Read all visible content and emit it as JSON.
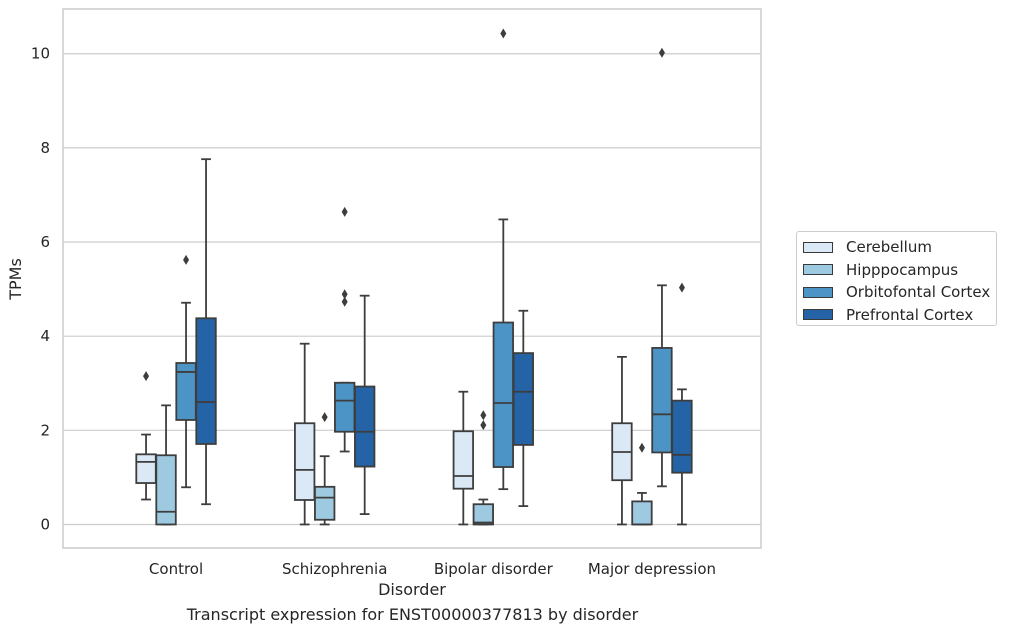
{
  "chart_data": {
    "type": "box",
    "title": "Transcript expression for ENST00000377813 by disorder",
    "xlabel": "Disorder",
    "ylabel": "TPMs",
    "ylim": [
      -0.5,
      10.95
    ],
    "yticks": [
      0,
      2,
      4,
      6,
      8,
      10
    ],
    "grid": "horizontal",
    "legend_position": "right",
    "categories": [
      "Control",
      "Schizophrenia",
      "Bipolar disorder",
      "Major depression"
    ],
    "series": [
      {
        "name": "Cerebellum",
        "color": "#dbe8f5",
        "boxes": [
          {
            "whislo": 0.53,
            "q1": 0.88,
            "med": 1.33,
            "q3": 1.49,
            "whishi": 1.91,
            "fliers": [
              3.15
            ]
          },
          {
            "whislo": 0.0,
            "q1": 0.52,
            "med": 1.16,
            "q3": 2.15,
            "whishi": 3.84,
            "fliers": []
          },
          {
            "whislo": 0.0,
            "q1": 0.76,
            "med": 1.03,
            "q3": 1.98,
            "whishi": 2.82,
            "fliers": []
          },
          {
            "whislo": 0.0,
            "q1": 0.94,
            "med": 1.54,
            "q3": 2.15,
            "whishi": 3.56,
            "fliers": []
          }
        ]
      },
      {
        "name": "Hipppocampus",
        "color": "#9ecae1",
        "boxes": [
          {
            "whislo": 0.0,
            "q1": 0.0,
            "med": 0.27,
            "q3": 1.47,
            "whishi": 2.53,
            "fliers": []
          },
          {
            "whislo": 0.0,
            "q1": 0.1,
            "med": 0.57,
            "q3": 0.8,
            "whishi": 1.45,
            "fliers": [
              2.28
            ]
          },
          {
            "whislo": 0.0,
            "q1": 0.0,
            "med": 0.04,
            "q3": 0.43,
            "whishi": 0.53,
            "fliers": [
              2.11,
              2.32
            ]
          },
          {
            "whislo": 0.0,
            "q1": 0.0,
            "med": 0.0,
            "q3": 0.49,
            "whishi": 0.67,
            "fliers": [
              1.63
            ]
          }
        ]
      },
      {
        "name": "Orbitofontal Cortex",
        "color": "#4d94c6",
        "boxes": [
          {
            "whislo": 0.79,
            "q1": 2.22,
            "med": 3.24,
            "q3": 3.43,
            "whishi": 4.71,
            "fliers": [
              5.62
            ]
          },
          {
            "whislo": 1.55,
            "q1": 1.97,
            "med": 2.63,
            "q3": 3.01,
            "whishi": 3.01,
            "fliers": [
              6.64,
              4.89,
              4.73
            ]
          },
          {
            "whislo": 0.75,
            "q1": 1.22,
            "med": 2.58,
            "q3": 4.29,
            "whishi": 6.48,
            "fliers": [
              10.43
            ]
          },
          {
            "whislo": 0.81,
            "q1": 1.53,
            "med": 2.34,
            "q3": 3.75,
            "whishi": 5.08,
            "fliers": [
              10.02
            ]
          }
        ]
      },
      {
        "name": "Prefrontal Cortex",
        "color": "#2463a6",
        "boxes": [
          {
            "whislo": 0.43,
            "q1": 1.71,
            "med": 2.6,
            "q3": 4.38,
            "whishi": 7.76,
            "fliers": []
          },
          {
            "whislo": 0.22,
            "q1": 1.23,
            "med": 1.97,
            "q3": 2.93,
            "whishi": 4.86,
            "fliers": []
          },
          {
            "whislo": 0.39,
            "q1": 1.69,
            "med": 2.82,
            "q3": 3.64,
            "whishi": 4.54,
            "fliers": []
          },
          {
            "whislo": 0.0,
            "q1": 1.1,
            "med": 1.48,
            "q3": 2.63,
            "whishi": 2.87,
            "fliers": [
              5.03
            ]
          }
        ]
      }
    ]
  }
}
